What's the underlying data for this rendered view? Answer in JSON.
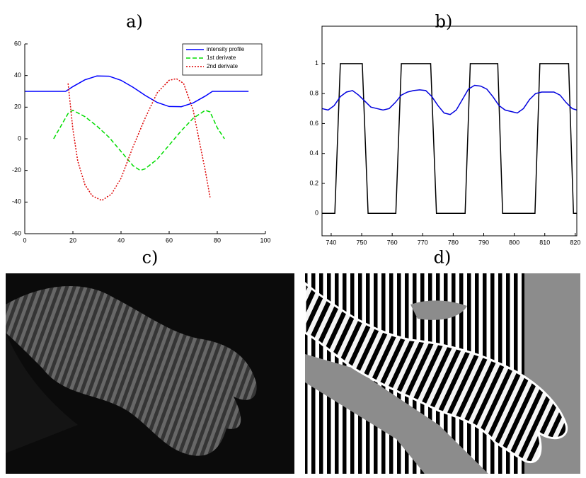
{
  "chart_data": [
    {
      "type": "line",
      "title": "a)",
      "xlim": [
        0,
        100
      ],
      "ylim": [
        -60,
        60
      ],
      "xticks": [
        0,
        20,
        40,
        60,
        80,
        100
      ],
      "yticks": [
        -60,
        -40,
        -20,
        0,
        20,
        40,
        60
      ],
      "legend": "upper right",
      "box": false,
      "series": [
        {
          "name": "intensity profile",
          "color": "#0000ff",
          "linestyle": "solid",
          "x": [
            0,
            5,
            10,
            15,
            17,
            20,
            25,
            30,
            35,
            40,
            45,
            50,
            55,
            60,
            65,
            70,
            75,
            78,
            85,
            93
          ],
          "values": [
            30,
            30,
            30,
            30,
            30,
            33.0,
            37.3,
            39.7,
            39.6,
            37.0,
            32.6,
            27.5,
            23.0,
            20.4,
            20.3,
            22.7,
            27.0,
            30,
            30,
            30
          ]
        },
        {
          "name": "1st derivate",
          "color": "#00dd00",
          "linestyle": "dashed",
          "x": [
            12,
            15,
            18,
            20,
            25,
            30,
            35,
            40,
            45,
            48,
            50,
            55,
            60,
            65,
            70,
            75,
            77,
            80,
            83
          ],
          "values": [
            0,
            8,
            16,
            18,
            14,
            8,
            1,
            -8,
            -17,
            -20,
            -19,
            -13,
            -4,
            5,
            13,
            18,
            17,
            7,
            0
          ]
        },
        {
          "name": "2nd derivate",
          "color": "#dd0000",
          "linestyle": "dotted",
          "x": [
            18,
            20,
            22,
            25,
            28,
            32,
            36,
            40,
            45,
            50,
            55,
            60,
            63,
            66,
            70,
            73,
            75,
            77
          ],
          "values": [
            35,
            6,
            -14,
            -29,
            -36,
            -39,
            -35,
            -25,
            -5,
            13,
            29,
            37,
            38,
            35,
            18,
            -5,
            -20,
            -37
          ]
        }
      ]
    },
    {
      "type": "line",
      "title": "b)",
      "xlim": [
        737,
        820.5
      ],
      "ylim": [
        -0.15,
        1.25
      ],
      "xticks": [
        740,
        750,
        760,
        770,
        780,
        790,
        800,
        810,
        820
      ],
      "yticks": [
        0,
        0.2,
        0.4,
        0.6,
        0.8,
        1
      ],
      "box": true,
      "series": [
        {
          "color": "#000000",
          "linestyle": "solid",
          "x": [
            737,
            741.2,
            743.0,
            750.2,
            752.1,
            761.2,
            763.0,
            772.6,
            774.5,
            783.9,
            785.6,
            794.6,
            796.2,
            806.8,
            808.4,
            817.8,
            819.4,
            820.5
          ],
          "values": [
            0,
            0,
            1,
            1,
            0,
            0,
            1,
            1,
            0,
            0,
            1,
            1,
            0,
            0,
            1,
            1,
            0,
            0
          ]
        },
        {
          "color": "#0000dd",
          "linestyle": "solid",
          "x": [
            737,
            739,
            741,
            743,
            745,
            747,
            749,
            751,
            753,
            755,
            757,
            759,
            761,
            763,
            765,
            767,
            769,
            771,
            773,
            775,
            777,
            779,
            781,
            783,
            785,
            787,
            789,
            791,
            793,
            795,
            797,
            799,
            801,
            803,
            805,
            807,
            809,
            811,
            813,
            815,
            817,
            819,
            820.5
          ],
          "values": [
            0.7,
            0.69,
            0.72,
            0.78,
            0.81,
            0.82,
            0.79,
            0.75,
            0.71,
            0.7,
            0.69,
            0.7,
            0.74,
            0.79,
            0.81,
            0.82,
            0.825,
            0.82,
            0.78,
            0.72,
            0.67,
            0.66,
            0.69,
            0.76,
            0.83,
            0.855,
            0.85,
            0.83,
            0.78,
            0.72,
            0.69,
            0.68,
            0.67,
            0.7,
            0.76,
            0.8,
            0.81,
            0.81,
            0.81,
            0.79,
            0.74,
            0.7,
            0.69
          ]
        }
      ]
    }
  ],
  "panels": [
    {
      "label": "c)"
    },
    {
      "label": "d)"
    }
  ]
}
